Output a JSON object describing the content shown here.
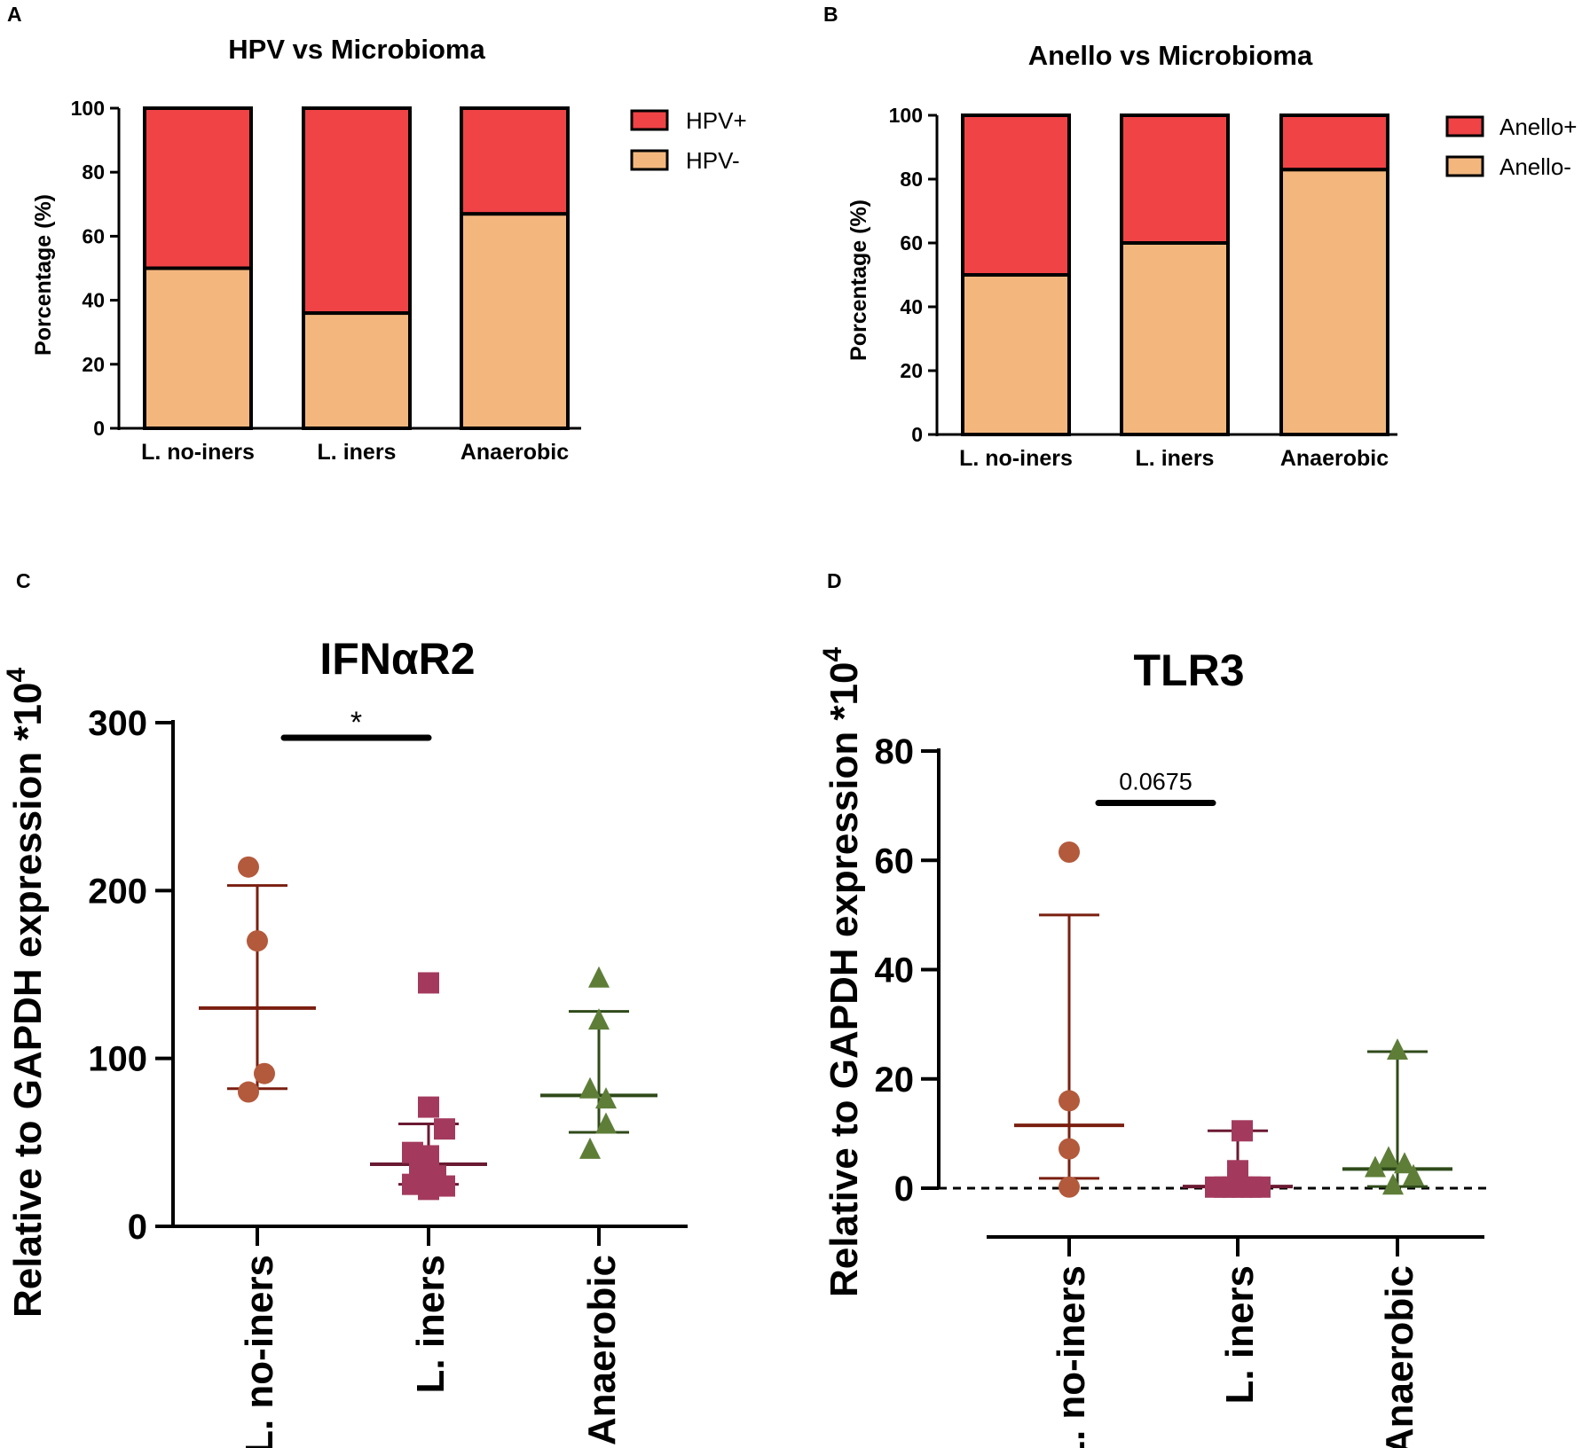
{
  "chart_data": [
    {
      "id": "A",
      "panel_label": "A",
      "type": "bar",
      "stacked": true,
      "title": "HPV vs Microbioma",
      "ylabel": "Porcentage (%)",
      "xlabel": "",
      "ylim": [
        0,
        100
      ],
      "yticks": [
        0,
        20,
        40,
        60,
        80,
        100
      ],
      "categories": [
        "L. no-iners",
        "L. iners",
        "Anaerobic"
      ],
      "series": [
        {
          "name": "HPV-",
          "color": "#F3B77E",
          "values": [
            50,
            36,
            67
          ]
        },
        {
          "name": "HPV+",
          "color": "#EF4346",
          "values": [
            50,
            64,
            33
          ]
        }
      ],
      "legend": [
        {
          "label": "HPV+",
          "color": "#EF4346"
        },
        {
          "label": "HPV-",
          "color": "#F3B77E"
        }
      ],
      "legend_position": "right"
    },
    {
      "id": "B",
      "panel_label": "B",
      "type": "bar",
      "stacked": true,
      "title": "Anello vs Microbioma",
      "ylabel": "Porcentage (%)",
      "xlabel": "",
      "ylim": [
        0,
        100
      ],
      "yticks": [
        0,
        20,
        40,
        60,
        80,
        100
      ],
      "categories": [
        "L. no-iners",
        "L. iners",
        "Anaerobic"
      ],
      "series": [
        {
          "name": "Anello-",
          "color": "#F3B77E",
          "values": [
            50,
            60,
            83
          ]
        },
        {
          "name": "Anello+",
          "color": "#EF4346",
          "values": [
            50,
            40,
            17
          ]
        }
      ],
      "legend": [
        {
          "label": "Anello+",
          "color": "#EF4346"
        },
        {
          "label": "Anello-",
          "color": "#F3B77E"
        }
      ],
      "legend_position": "right"
    },
    {
      "id": "C",
      "panel_label": "C",
      "type": "scatter",
      "title": "IFNαR2",
      "ylabel": "Relative to GAPDH expression *10",
      "ylabel_sup": "4",
      "ylim": [
        0,
        300
      ],
      "yticks": [
        0,
        100,
        200,
        300
      ],
      "categories": [
        "L. no-iners",
        "L. iners",
        "Anaerobic"
      ],
      "groups": [
        {
          "name": "L. no-iners",
          "marker": "circle",
          "color": "#B35A3C",
          "line_color": "#7A1F10",
          "points": [
            {
              "x": -0.1,
              "y": 214
            },
            {
              "x": 0.0,
              "y": 170
            },
            {
              "x": 0.08,
              "y": 91
            },
            {
              "x": -0.1,
              "y": 80
            }
          ],
          "center": 130,
          "err_low": 82,
          "err_high": 203
        },
        {
          "name": "L. iners",
          "marker": "square",
          "color": "#A33A5E",
          "line_color": "#6B1A33",
          "points": [
            {
              "x": 0.0,
              "y": 145
            },
            {
              "x": 0.0,
              "y": 71
            },
            {
              "x": 0.18,
              "y": 58
            },
            {
              "x": -0.18,
              "y": 44
            },
            {
              "x": 0.0,
              "y": 42
            },
            {
              "x": -0.1,
              "y": 33
            },
            {
              "x": 0.08,
              "y": 30
            },
            {
              "x": -0.18,
              "y": 25
            },
            {
              "x": 0.18,
              "y": 24
            },
            {
              "x": 0.0,
              "y": 22
            }
          ],
          "center": 37,
          "err_low": 25,
          "err_high": 61
        },
        {
          "name": "Anaerobic",
          "marker": "triangle",
          "color": "#5E7E38",
          "line_color": "#2F4A1A",
          "points": [
            {
              "x": 0.0,
              "y": 147
            },
            {
              "x": 0.0,
              "y": 122
            },
            {
              "x": -0.1,
              "y": 81
            },
            {
              "x": 0.08,
              "y": 75
            },
            {
              "x": 0.08,
              "y": 60
            },
            {
              "x": -0.1,
              "y": 45
            }
          ],
          "center": 78,
          "err_low": 56,
          "err_high": 128
        }
      ],
      "significance": {
        "from": "L. no-iners",
        "to": "L. iners",
        "y": 291,
        "label": "*"
      }
    },
    {
      "id": "D",
      "panel_label": "D",
      "type": "scatter",
      "title": "TLR3",
      "ylabel": "Relative to GAPDH expression *10",
      "ylabel_sup": "4",
      "ylim": [
        0,
        80
      ],
      "yticks": [
        0,
        20,
        40,
        60,
        80
      ],
      "reference_line_y": 0,
      "categories": [
        "L. no-iners",
        "L. iners",
        "Anaerobic"
      ],
      "groups": [
        {
          "name": "L. no-iners",
          "marker": "circle",
          "color": "#B35A3C",
          "line_color": "#7A1F10",
          "points": [
            {
              "x": 0.0,
              "y": 61.5
            },
            {
              "x": 0.0,
              "y": 16
            },
            {
              "x": 0.0,
              "y": 7.2
            },
            {
              "x": 0.0,
              "y": 0.2
            }
          ],
          "center": 11.5,
          "err_low": 1.8,
          "err_high": 50
        },
        {
          "name": "L. iners",
          "marker": "square",
          "color": "#A33A5E",
          "line_color": "#6B1A33",
          "points": [
            {
              "x": 0.05,
              "y": 10.5
            },
            {
              "x": 0.0,
              "y": 3.2
            },
            {
              "x": -0.25,
              "y": 0.2
            },
            {
              "x": -0.15,
              "y": 0.2
            },
            {
              "x": -0.05,
              "y": 0.2
            },
            {
              "x": 0.05,
              "y": 0.2
            },
            {
              "x": 0.15,
              "y": 0.2
            },
            {
              "x": 0.25,
              "y": 0.2
            }
          ],
          "center": 0.3,
          "err_low": 0,
          "err_high": 10.5
        },
        {
          "name": "Anaerobic",
          "marker": "triangle",
          "color": "#5E7E38",
          "line_color": "#2F4A1A",
          "points": [
            {
              "x": 0.0,
              "y": 25
            },
            {
              "x": -0.1,
              "y": 5.3
            },
            {
              "x": 0.08,
              "y": 4.2
            },
            {
              "x": -0.25,
              "y": 3.5
            },
            {
              "x": 0.18,
              "y": 2.0
            },
            {
              "x": -0.05,
              "y": 0.3
            }
          ],
          "center": 3.5,
          "err_low": 0.3,
          "err_high": 25
        }
      ],
      "significance": {
        "from": "L. no-iners",
        "to": "L. iners",
        "y": 70.5,
        "label": "0.0675"
      }
    }
  ]
}
